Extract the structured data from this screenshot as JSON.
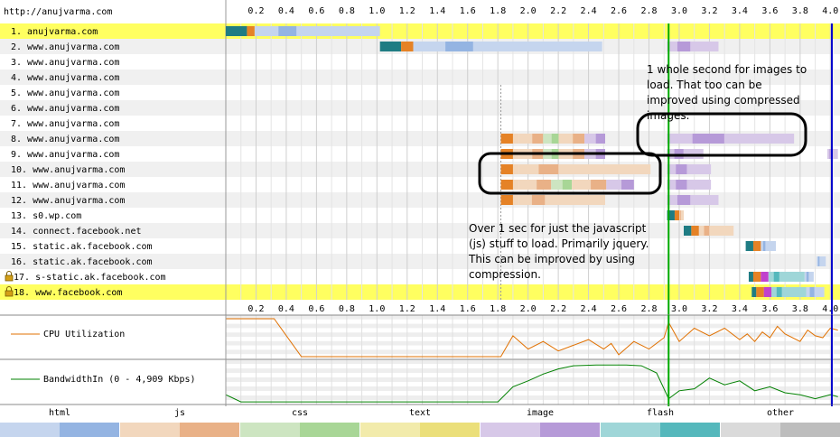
{
  "chart_data": {
    "type": "waterfall",
    "title": "http://anujvarma.com",
    "x_ticks": [
      0.2,
      0.4,
      0.6,
      0.8,
      1.0,
      1.2,
      1.4,
      1.6,
      1.8,
      2.0,
      2.2,
      2.4,
      2.6,
      2.8,
      3.0,
      3.2,
      3.4,
      3.6,
      3.8,
      4.0
    ],
    "xlim": [
      0,
      4.04
    ],
    "markers": [
      {
        "time": 2.93,
        "color": "#00aa00"
      },
      {
        "time": 4.01,
        "color": "#0000cc"
      }
    ],
    "start_render_time": 1.82,
    "requests": [
      {
        "label": "1. anujvarma.com",
        "highlight": true,
        "lock": false,
        "type": "html",
        "dns": [
          0.0,
          0.14
        ],
        "connect": [
          0.14,
          0.19
        ],
        "ttfb": [
          0.19,
          0.23
        ],
        "download": [
          0.23,
          1.02
        ]
      },
      {
        "label": "2. www.anujvarma.com",
        "highlight": false,
        "lock": false,
        "type": "html",
        "dns": [
          1.02,
          1.16
        ],
        "connect": [
          1.16,
          1.24
        ],
        "ttfb": [
          1.24,
          1.27
        ],
        "download": [
          1.27,
          2.49
        ],
        "extra": [
          {
            "type": "image",
            "start": 2.92,
            "end": 3.26
          }
        ]
      },
      {
        "label": "3. www.anujvarma.com",
        "highlight": false,
        "lock": false,
        "type": "none"
      },
      {
        "label": "4. www.anujvarma.com",
        "highlight": false,
        "lock": false,
        "type": "none"
      },
      {
        "label": "5. www.anujvarma.com",
        "highlight": false,
        "lock": false,
        "type": "none"
      },
      {
        "label": "6. www.anujvarma.com",
        "highlight": false,
        "lock": false,
        "type": "none"
      },
      {
        "label": "7. www.anujvarma.com",
        "highlight": false,
        "lock": false,
        "type": "none"
      },
      {
        "label": "8. www.anujvarma.com",
        "highlight": false,
        "lock": false,
        "type": "mixed",
        "connect": [
          1.82,
          1.9
        ],
        "ttfb": [
          1.9,
          1.94
        ],
        "download": [
          1.94,
          2.51
        ],
        "extra": [
          {
            "type": "image",
            "start": 2.92,
            "end": 3.76
          }
        ]
      },
      {
        "label": "9. www.anujvarma.com",
        "highlight": false,
        "lock": false,
        "type": "mixed",
        "connect": [
          1.82,
          1.9
        ],
        "ttfb": [
          1.9,
          1.94
        ],
        "download": [
          1.94,
          2.51
        ],
        "extra": [
          {
            "type": "image",
            "start": 2.92,
            "end": 3.16
          },
          {
            "type": "image",
            "start": 3.98,
            "end": 4.05
          }
        ]
      },
      {
        "label": "10. www.anujvarma.com",
        "highlight": false,
        "lock": false,
        "type": "js",
        "connect": [
          1.82,
          1.9
        ],
        "ttfb": [
          1.9,
          1.94
        ],
        "download": [
          1.94,
          2.81
        ],
        "extra": [
          {
            "type": "image",
            "start": 2.92,
            "end": 3.21
          }
        ]
      },
      {
        "label": "11. www.anujvarma.com",
        "highlight": false,
        "lock": false,
        "type": "mixed",
        "connect": [
          1.82,
          1.9
        ],
        "ttfb": [
          1.9,
          1.94
        ],
        "download": [
          1.94,
          2.7
        ],
        "extra": [
          {
            "type": "image",
            "start": 2.92,
            "end": 3.21
          }
        ]
      },
      {
        "label": "12. www.anujvarma.com",
        "highlight": false,
        "lock": false,
        "type": "js",
        "connect": [
          1.82,
          1.9
        ],
        "ttfb": [
          1.9,
          1.94
        ],
        "download": [
          1.94,
          2.51
        ],
        "extra": [
          {
            "type": "image",
            "start": 2.92,
            "end": 3.26
          }
        ]
      },
      {
        "label": "13. s0.wp.com",
        "highlight": false,
        "lock": false,
        "type": "js",
        "dns": [
          2.92,
          2.97
        ],
        "connect": [
          2.97,
          3.0
        ],
        "download": [
          3.0,
          3.03
        ]
      },
      {
        "label": "14. connect.facebook.net",
        "highlight": false,
        "lock": false,
        "type": "js",
        "dns": [
          3.03,
          3.08
        ],
        "connect": [
          3.08,
          3.13
        ],
        "download": [
          3.13,
          3.36
        ]
      },
      {
        "label": "15. static.ak.facebook.com",
        "highlight": false,
        "lock": false,
        "type": "html",
        "dns": [
          3.44,
          3.49
        ],
        "connect": [
          3.49,
          3.54
        ],
        "download": [
          3.54,
          3.64
        ]
      },
      {
        "label": "16. static.ak.facebook.com",
        "highlight": false,
        "lock": false,
        "type": "html",
        "download": [
          3.91,
          3.97
        ]
      },
      {
        "label": "17. s-static.ak.facebook.com",
        "highlight": false,
        "lock": true,
        "type": "flash",
        "dns": [
          3.46,
          3.49
        ],
        "connect": [
          3.49,
          3.54
        ],
        "ssl": [
          3.54,
          3.59
        ],
        "download": [
          3.59,
          3.83
        ],
        "extra": [
          {
            "type": "html",
            "start": 3.83,
            "end": 3.89
          }
        ]
      },
      {
        "label": "18. www.facebook.com",
        "highlight": true,
        "lock": true,
        "type": "flash",
        "dns": [
          3.48,
          3.51
        ],
        "connect": [
          3.51,
          3.56
        ],
        "ssl": [
          3.56,
          3.61
        ],
        "download": [
          3.61,
          3.84
        ],
        "extra": [
          {
            "type": "html",
            "start": 3.84,
            "end": 3.96
          }
        ]
      }
    ],
    "cpu": {
      "label": "CPU Utilization",
      "color": "#e07000",
      "t": [
        0.0,
        0.2,
        0.32,
        0.5,
        1.0,
        1.5,
        1.82,
        1.9,
        2.0,
        2.1,
        2.2,
        2.3,
        2.4,
        2.5,
        2.55,
        2.6,
        2.7,
        2.8,
        2.9,
        2.93,
        3.0,
        3.1,
        3.2,
        3.3,
        3.4,
        3.45,
        3.5,
        3.55,
        3.6,
        3.65,
        3.7,
        3.8,
        3.85,
        3.9,
        3.95,
        4.0,
        4.05
      ],
      "v": [
        100,
        100,
        100,
        0,
        0,
        0,
        0,
        55,
        20,
        40,
        15,
        30,
        45,
        20,
        35,
        5,
        40,
        20,
        50,
        90,
        40,
        75,
        55,
        75,
        45,
        60,
        40,
        65,
        50,
        80,
        60,
        40,
        70,
        55,
        50,
        75,
        70
      ]
    },
    "bandwidth": {
      "label": "BandwidthIn (0 - 4,909 Kbps)",
      "color": "#008000",
      "t": [
        0.0,
        0.1,
        0.3,
        1.0,
        1.8,
        1.9,
        2.0,
        2.1,
        2.2,
        2.3,
        2.45,
        2.55,
        2.65,
        2.75,
        2.85,
        2.93,
        3.0,
        3.1,
        3.2,
        3.3,
        3.4,
        3.5,
        3.6,
        3.7,
        3.8,
        3.9,
        4.0,
        4.05
      ],
      "v": [
        20,
        2,
        2,
        2,
        2,
        40,
        55,
        72,
        85,
        93,
        95,
        95,
        95,
        93,
        75,
        10,
        30,
        35,
        62,
        45,
        55,
        30,
        40,
        25,
        20,
        10,
        20,
        15
      ]
    },
    "legend": [
      {
        "label": "html",
        "light": "#c5d5ee",
        "dark": "#94b4e2"
      },
      {
        "label": "js",
        "light": "#f2d7bd",
        "dark": "#e9b187"
      },
      {
        "label": "css",
        "light": "#cde5c1",
        "dark": "#a8d696"
      },
      {
        "label": "text",
        "light": "#f2ebab",
        "dark": "#ebdf7a"
      },
      {
        "label": "image",
        "light": "#d7c8e8",
        "dark": "#b69ad8"
      },
      {
        "label": "flash",
        "light": "#9fd6d8",
        "dark": "#55b8bc"
      },
      {
        "label": "other",
        "light": "#dadada",
        "dark": "#bdbdbd"
      }
    ],
    "annotations": [
      {
        "lines": [
          "1 whole second for images to",
          "load. That too can be",
          "improved using compressed",
          "images."
        ]
      },
      {
        "lines": [
          "Over 1 sec for just the javascript",
          "(js) stuff to load. Primarily jquery.",
          "This can be improved by using",
          "compression."
        ]
      }
    ]
  }
}
